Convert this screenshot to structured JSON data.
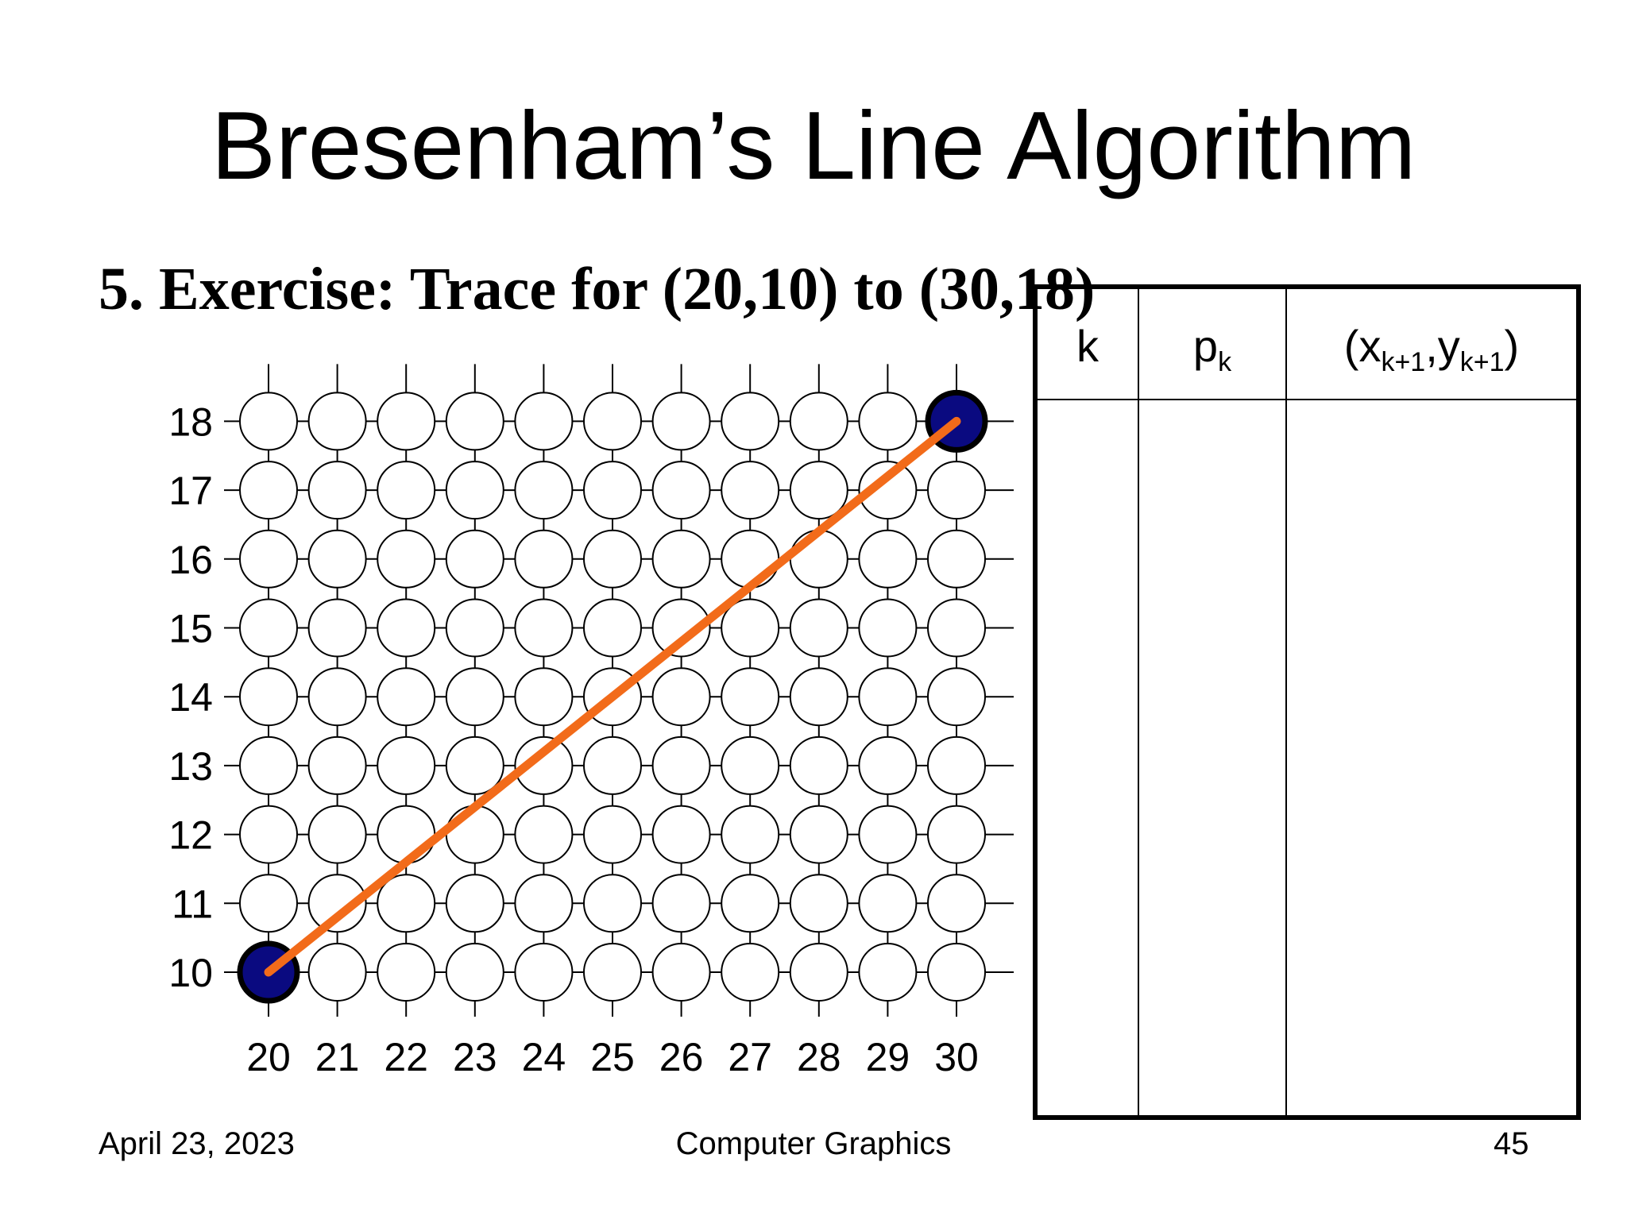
{
  "slide": {
    "title": "Bresenham’s Line Algorithm",
    "subtitle": "5. Exercise: Trace for (20,10) to (30,18)"
  },
  "chart_data": {
    "type": "scatter",
    "x_ticks": [
      "20",
      "21",
      "22",
      "23",
      "24",
      "25",
      "26",
      "27",
      "28",
      "29",
      "30"
    ],
    "y_ticks": [
      "10",
      "11",
      "12",
      "13",
      "14",
      "15",
      "16",
      "17",
      "18"
    ],
    "x_range": [
      20,
      30
    ],
    "y_range": [
      10,
      18
    ],
    "grid": true,
    "filled_points": [
      {
        "x": 20,
        "y": 10
      },
      {
        "x": 30,
        "y": 18
      }
    ],
    "line": {
      "from": {
        "x": 20,
        "y": 10
      },
      "to": {
        "x": 30,
        "y": 18
      }
    },
    "colors": {
      "point_fill": "#0a0a80",
      "line": "#f26b1a",
      "pixel_outline": "#000000"
    }
  },
  "table": {
    "headers": {
      "k": "k",
      "p": "p",
      "p_sub": "k",
      "xy_open": "(x",
      "xy_sub1": "k+1",
      "xy_mid": ",y",
      "xy_sub2": "k+1",
      "xy_close": ")"
    },
    "rows": []
  },
  "footer": {
    "date": "April 23, 2023",
    "course": "Computer Graphics",
    "page": "45"
  }
}
